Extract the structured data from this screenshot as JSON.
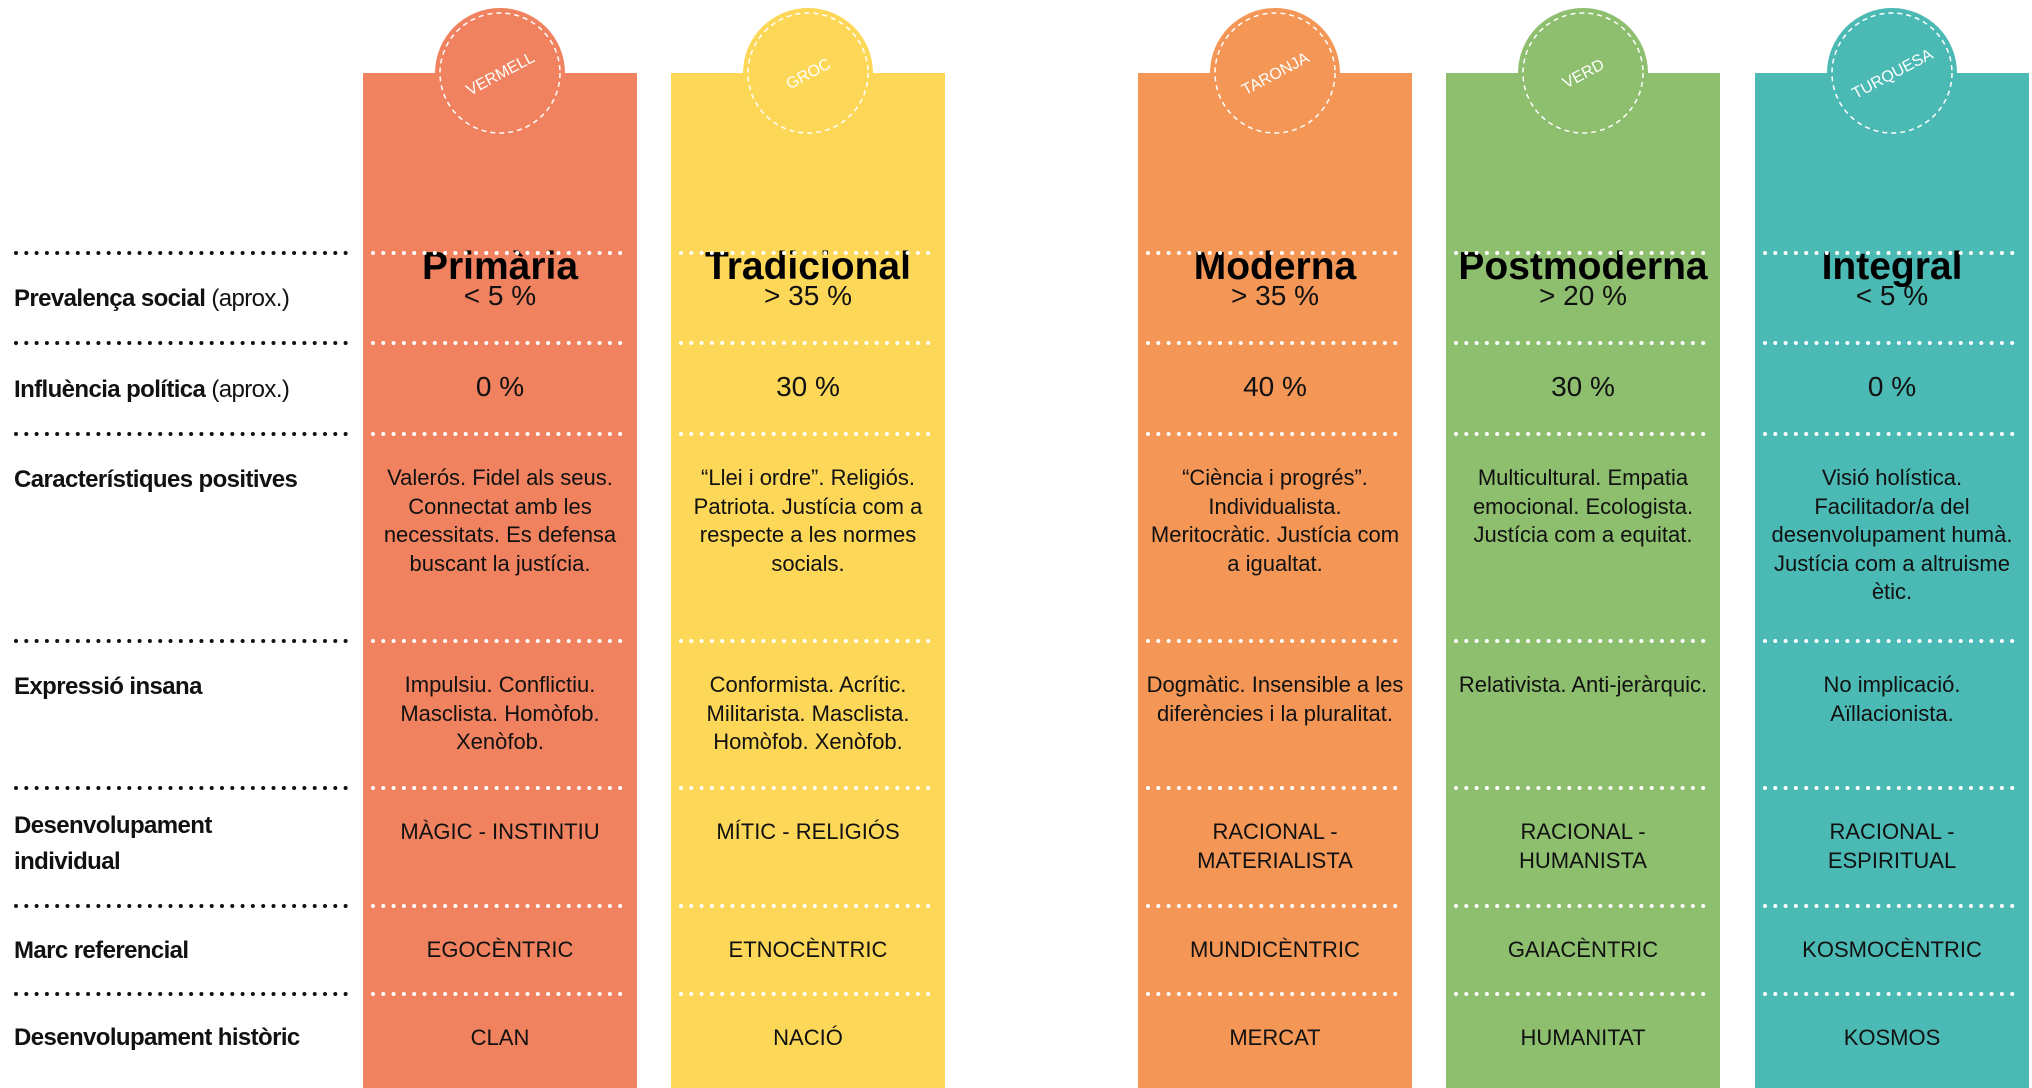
{
  "rows": [
    {
      "label": "Prevalença social",
      "note": "(aprox.)"
    },
    {
      "label": "Influència política",
      "note": "(aprox.)"
    },
    {
      "label": "Característiques positives"
    },
    {
      "label": "Expressió insana"
    },
    {
      "label": "Desenvolupament individual"
    },
    {
      "label": "Marc referencial"
    },
    {
      "label": "Desenvolupament històric"
    }
  ],
  "columns": [
    {
      "badge": "VERMELL",
      "title": "Primària",
      "color": "#f0825f",
      "cells": [
        "< 5 %",
        "0 %",
        "Valerós. Fidel als seus. Connectat amb les necessitats. Es defensa buscant la justícia.",
        "Impulsiu. Conflictiu. Masclista. Homòfob. Xenòfob.",
        "MÀGIC - INSTINTIU",
        "EGOCÈNTRIC",
        "CLAN"
      ]
    },
    {
      "badge": "GROC",
      "title": "Tradicional",
      "color": "#fdd757",
      "cells": [
        "> 35 %",
        "30 %",
        "“Llei i ordre”. Religiós. Patriota. Justícia com a respecte a les normes socials.",
        "Conformista. Acrític. Militarista. Masclista. Homòfob. Xenòfob.",
        "MÍTIC - RELIGIÓS",
        "ETNOCÈNTRIC",
        "NACIÓ"
      ]
    },
    {
      "badge": "TARONJA",
      "title": "Moderna",
      "color": "#f39656",
      "cells": [
        "> 35 %",
        "40 %",
        "“Ciència i progrés”. Individualista. Meritocràtic. Justícia com a igualtat.",
        "Dogmàtic. Insensible a les diferències i la pluralitat.",
        "RACIONAL - MATERIALISTA",
        "MUNDICÈNTRIC",
        "MERCAT"
      ]
    },
    {
      "badge": "VERD",
      "title": "Postmoderna",
      "color": "#8dbf6e",
      "cells": [
        "> 20 %",
        "30 %",
        "Multicultural. Empatia emocional. Ecologista. Justícia com a equitat.",
        "Relativista. Anti-jeràrquic.",
        "RACIONAL - HUMANISTA",
        "GAIACÈNTRIC",
        "HUMANITAT"
      ]
    },
    {
      "badge": "TURQUESA",
      "title": "Integral",
      "color": "#4bbab5",
      "cells": [
        "< 5 %",
        "0 %",
        "Visió holística. Facilitador/a del desenvolupament humà. Justícia com a altruisme ètic.",
        "No implicació. Aïllacionista.",
        "RACIONAL - ESPIRITUAL",
        "KOSMOCÈNTRIC",
        "KOSMOS"
      ]
    }
  ]
}
